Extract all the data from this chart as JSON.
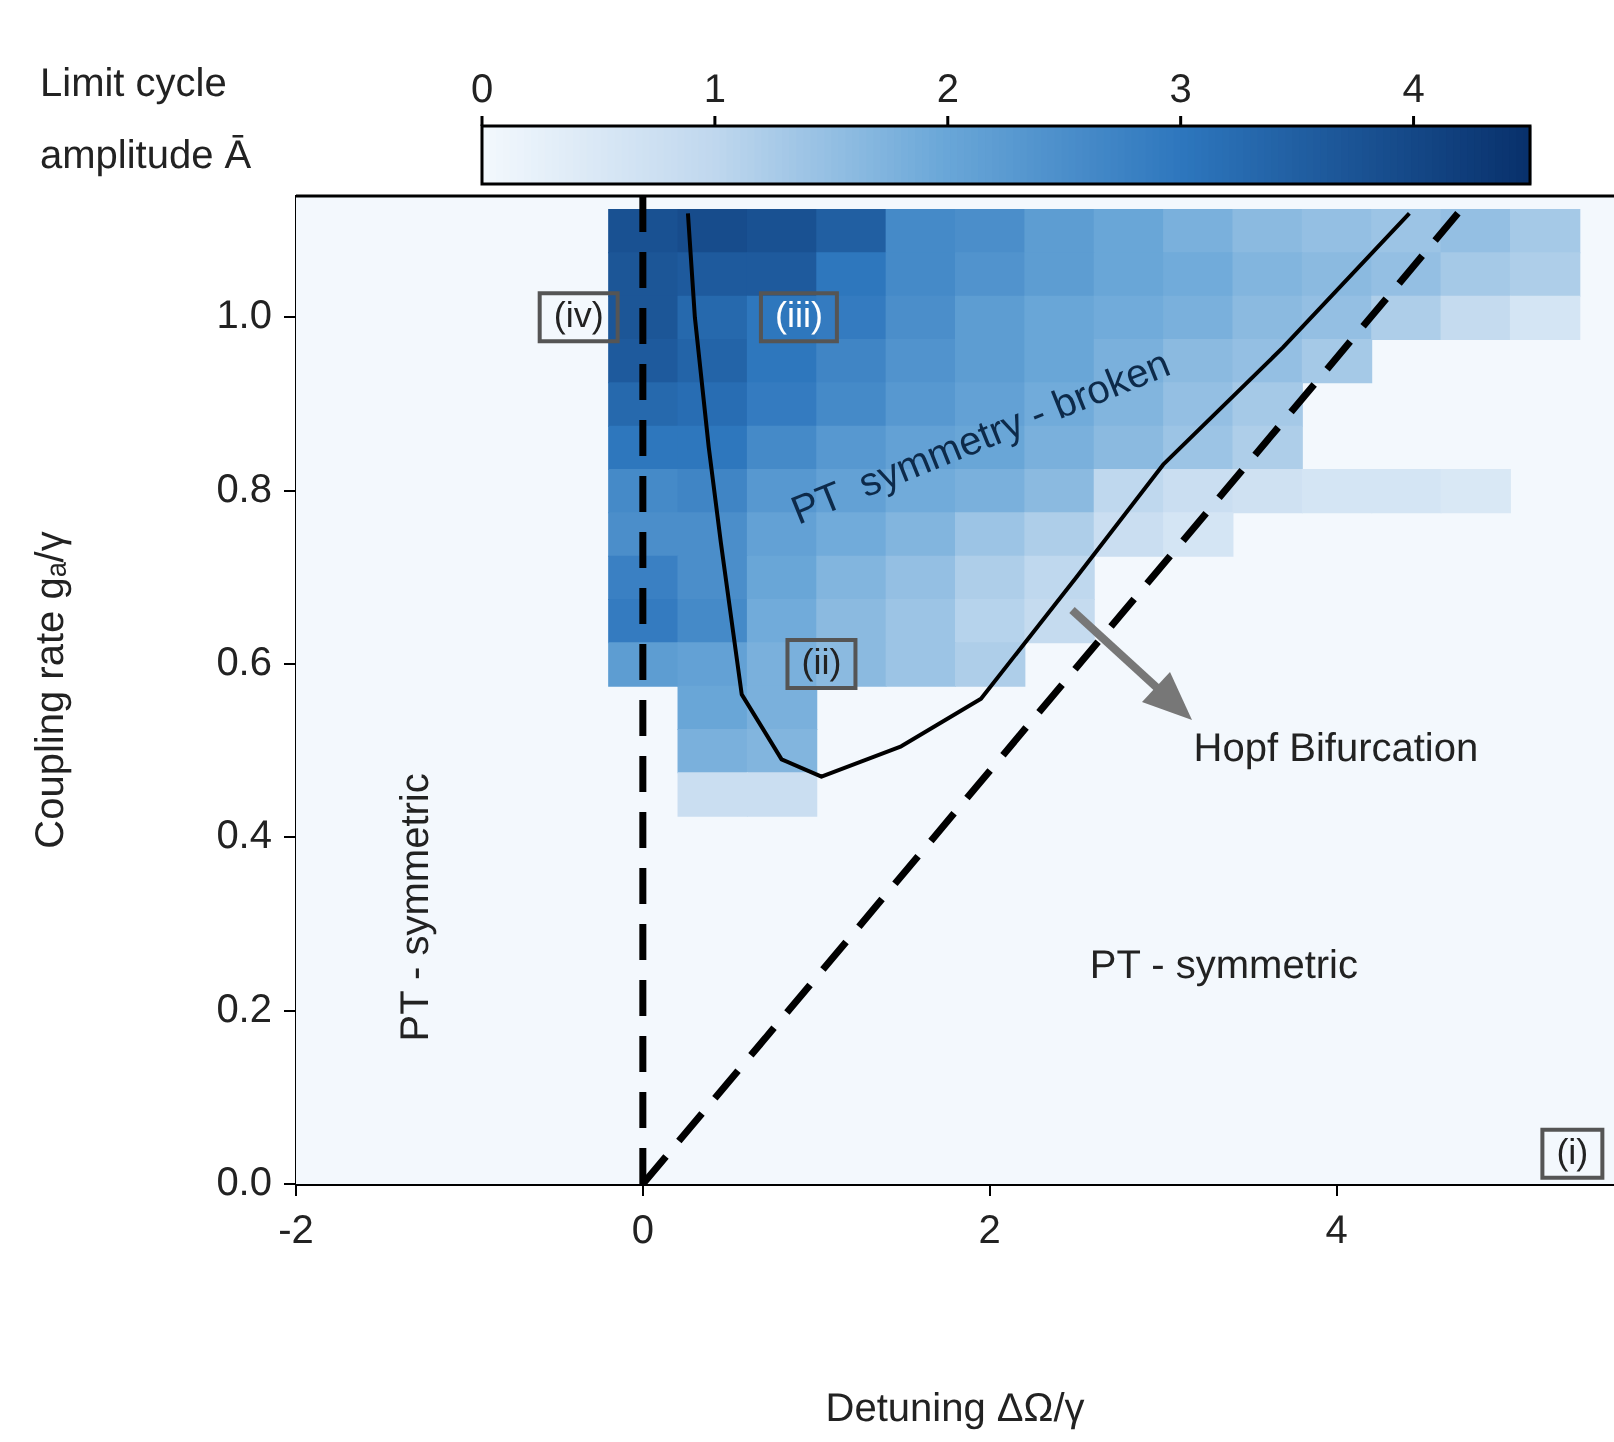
{
  "chart_data": {
    "type": "heatmap",
    "xlabel": "Detuning ΔΩ/γ",
    "ylabel": "Coupling rate gₐ/γ",
    "clabel": "Limit cycle amplitude Ā",
    "x": [
      0,
      0.4,
      0.8,
      1.2,
      1.6,
      2.0,
      2.4,
      2.8,
      3.2,
      3.6,
      4.0,
      4.4,
      4.8,
      5.2
    ],
    "y": [
      1.1,
      1.05,
      1.0,
      0.95,
      0.9,
      0.85,
      0.8,
      0.75,
      0.7,
      0.65,
      0.6,
      0.55,
      0.5,
      0.45
    ],
    "cells": [
      [
        3.8,
        3.9,
        3.8,
        3.5,
        2.6,
        2.5,
        2.2,
        2.0,
        1.8,
        1.6,
        1.5,
        1.4,
        1.5,
        1.3
      ],
      [
        3.7,
        3.6,
        3.6,
        3.0,
        2.6,
        2.4,
        2.2,
        2.0,
        1.9,
        1.7,
        1.6,
        1.5,
        1.3,
        1.2
      ],
      [
        3.7,
        3.3,
        3.0,
        2.9,
        2.5,
        2.2,
        2.0,
        1.9,
        1.8,
        1.6,
        1.5,
        1.2,
        0.9,
        0.6
      ],
      [
        3.6,
        3.4,
        3.0,
        2.7,
        2.4,
        2.2,
        2.0,
        1.8,
        1.6,
        1.5,
        1.3,
        null,
        null,
        null
      ],
      [
        3.3,
        3.2,
        2.9,
        2.6,
        2.3,
        2.1,
        1.9,
        1.7,
        1.5,
        1.3,
        null,
        null,
        null,
        null
      ],
      [
        3.0,
        3.0,
        2.6,
        2.3,
        2.1,
        2.0,
        1.8,
        1.6,
        1.4,
        1.2,
        null,
        null,
        null,
        null
      ],
      [
        2.6,
        2.7,
        2.3,
        2.1,
        1.9,
        1.8,
        1.6,
        1.0,
        0.8,
        0.7,
        0.6,
        0.6,
        0.5,
        null
      ],
      [
        2.5,
        2.5,
        2.1,
        1.9,
        1.7,
        1.4,
        1.2,
        0.8,
        0.6,
        null,
        null,
        null,
        null,
        null
      ],
      [
        2.8,
        2.5,
        2.0,
        1.7,
        1.5,
        1.2,
        1.0,
        null,
        null,
        null,
        null,
        null,
        null,
        null
      ],
      [
        2.9,
        2.6,
        1.9,
        1.6,
        1.4,
        1.1,
        0.9,
        null,
        null,
        null,
        null,
        null,
        null,
        null
      ],
      [
        2.2,
        2.1,
        1.8,
        1.6,
        1.4,
        1.2,
        null,
        null,
        null,
        null,
        null,
        null,
        null,
        null
      ],
      [
        null,
        2.0,
        1.8,
        null,
        null,
        null,
        null,
        null,
        null,
        null,
        null,
        null,
        null,
        null
      ],
      [
        null,
        1.8,
        1.7,
        null,
        null,
        null,
        null,
        null,
        null,
        null,
        null,
        null,
        null,
        null
      ],
      [
        null,
        0.8,
        0.8,
        null,
        null,
        null,
        null,
        null,
        null,
        null,
        null,
        null,
        null,
        null
      ]
    ],
    "clim": [
      0,
      4.5
    ],
    "cticks": [
      0,
      1,
      2,
      3,
      4
    ],
    "xlim": [
      -2,
      5.6
    ],
    "xticks": [
      -2,
      0,
      2,
      4
    ],
    "ylim": [
      0,
      1.14
    ],
    "yticks": [
      {
        "value": 0,
        "label": "0.0"
      },
      {
        "value": 0.2,
        "label": "0.2"
      },
      {
        "value": 0.4,
        "label": "0.4"
      },
      {
        "value": 0.6,
        "label": "0.6"
      },
      {
        "value": 0.8,
        "label": "0.8"
      },
      {
        "value": 1.0,
        "label": "1.0"
      }
    ],
    "series": [
      {
        "type": "line",
        "x": [
          0.26,
          0.3,
          0.38,
          0.45,
          0.57,
          0.8,
          1.03,
          1.49,
          1.95,
          2.5,
          3.0,
          3.69,
          4.42
        ],
        "values": [
          1.12,
          1.0,
          0.85,
          0.74,
          0.565,
          0.49,
          0.47,
          0.505,
          0.56,
          0.7,
          0.83,
          0.965,
          1.12
        ],
        "color": "#000000",
        "line_style": "solid"
      },
      {
        "type": "line",
        "x": [
          0,
          4.7
        ],
        "values": [
          0,
          1.12
        ],
        "color": "#000000",
        "line_style": "dashed"
      }
    ],
    "ref_lines": [
      {
        "axis": "x",
        "value": 0,
        "color": "#000000",
        "line_style": "dashed"
      }
    ],
    "annotations": [
      "PT  symmetry - broken",
      "PT - symmetric",
      "PT - symmetric",
      "Hopf Bifurcation",
      {
        "text": "(i)",
        "x": 5.36,
        "y": 0.035
      },
      {
        "text": "(ii)",
        "x": 1.03,
        "y": 0.6
      },
      {
        "text": "(iii)",
        "x": 0.9,
        "y": 1.0
      },
      {
        "text": "(iv)",
        "x": -0.37,
        "y": 1.0
      }
    ],
    "legend": false
  }
}
